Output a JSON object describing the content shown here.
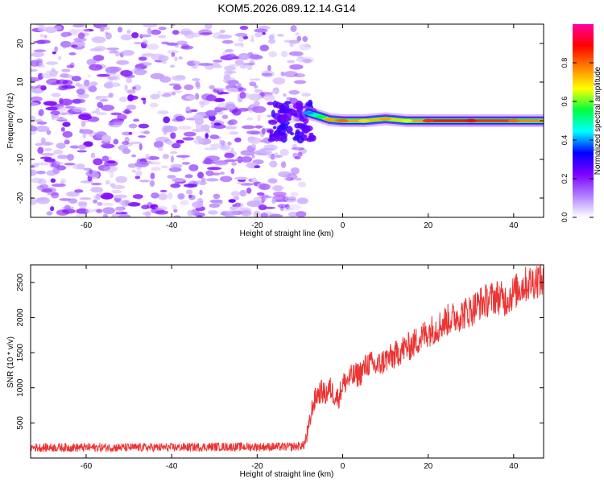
{
  "title": "KOM5.2026.089.12.14.G14",
  "chart_data": [
    {
      "type": "heatmap",
      "name": "spectrogram",
      "xlabel": "Height of straight line (km)",
      "ylabel": "Frequency (Hz)",
      "xlim": [
        -73,
        47
      ],
      "ylim": [
        -25,
        25
      ],
      "xticks": [
        -60,
        -40,
        -20,
        0,
        20,
        40
      ],
      "yticks": [
        -20,
        -10,
        0,
        10,
        20
      ],
      "colorbar": {
        "label": "Normalized spectral amplitude",
        "range": [
          0,
          1
        ],
        "ticks": [
          0.0,
          0.2,
          0.4,
          0.6,
          0.8
        ],
        "tick_labels": [
          "0.0",
          "0.2",
          "0.4",
          "0.6",
          "0.8"
        ],
        "colors": [
          "#ffffff",
          "#b080ff",
          "#8000ff",
          "#0000ff",
          "#00ffff",
          "#00ff40",
          "#ffff00",
          "#ff8000",
          "#ff0000",
          "#ff00a0"
        ]
      },
      "noise_region": {
        "x_range": [
          -73,
          -8
        ],
        "freq_range": [
          -25,
          25
        ],
        "amplitude_range": [
          0.05,
          0.25
        ]
      },
      "signal_track": [
        {
          "x": -8,
          "freq": 2.0,
          "amplitude": 0.4
        },
        {
          "x": -5,
          "freq": 1.0,
          "amplitude": 0.55
        },
        {
          "x": -3,
          "freq": 0.3,
          "amplitude": 0.75
        },
        {
          "x": 0,
          "freq": 0.0,
          "amplitude": 0.8
        },
        {
          "x": 5,
          "freq": 0.0,
          "amplitude": 0.7
        },
        {
          "x": 10,
          "freq": 0.5,
          "amplitude": 0.75
        },
        {
          "x": 15,
          "freq": 0.0,
          "amplitude": 0.65
        },
        {
          "x": 20,
          "freq": 0.0,
          "amplitude": 0.85
        },
        {
          "x": 30,
          "freq": 0.0,
          "amplitude": 0.9
        },
        {
          "x": 40,
          "freq": 0.0,
          "amplitude": 0.8
        },
        {
          "x": 47,
          "freq": 0.0,
          "amplitude": 0.75
        }
      ]
    },
    {
      "type": "line",
      "name": "snr",
      "xlabel": "Height of straight line (km)",
      "ylabel": "SNR (10 * v/v)",
      "xlim": [
        -73,
        47
      ],
      "ylim": [
        0,
        2750
      ],
      "xticks": [
        -60,
        -40,
        -20,
        0,
        20,
        40
      ],
      "yticks": [
        500,
        1000,
        1500,
        2000,
        2500
      ],
      "color": "#ee3333",
      "series": [
        {
          "name": "SNR",
          "x": [
            -73,
            -60,
            -50,
            -40,
            -30,
            -20,
            -12,
            -9,
            -8,
            -7,
            -6,
            -5,
            -4,
            -3,
            -2,
            -1,
            0,
            2,
            4,
            6,
            8,
            10,
            12,
            14,
            16,
            18,
            20,
            22,
            24,
            26,
            28,
            30,
            32,
            34,
            36,
            38,
            40,
            42,
            44,
            46,
            47
          ],
          "y": [
            150,
            150,
            150,
            150,
            160,
            160,
            160,
            180,
            400,
            750,
            900,
            950,
            900,
            1000,
            900,
            850,
            1050,
            1150,
            1200,
            1350,
            1300,
            1400,
            1450,
            1550,
            1600,
            1700,
            1800,
            1850,
            1950,
            2000,
            2050,
            2100,
            2200,
            2250,
            2300,
            2250,
            2350,
            2450,
            2500,
            2550,
            2500
          ]
        }
      ]
    }
  ]
}
